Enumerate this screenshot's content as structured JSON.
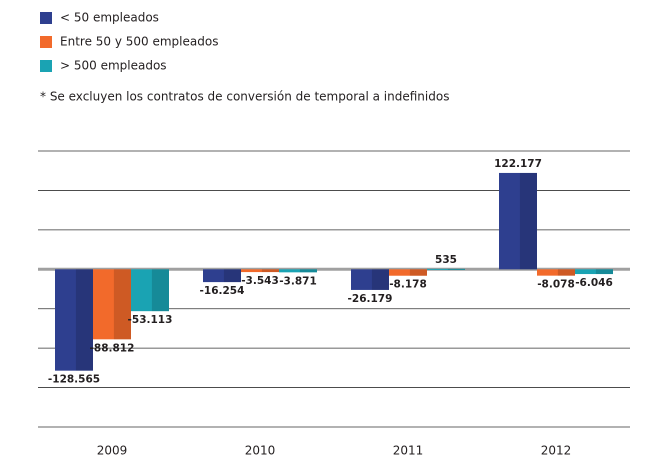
{
  "chart_data": {
    "type": "bar",
    "note": "* Se excluyen los contratos de conversión de temporal a indefinidos",
    "categories": [
      "2009",
      "2010",
      "2011",
      "2012"
    ],
    "series": [
      {
        "name": "< 50 empleados",
        "color": "#2e3f8f",
        "values": [
          -128565,
          -16254,
          -26179,
          122177
        ],
        "value_labels": [
          "-128.565",
          "-16.254",
          "-26.179",
          "122.177"
        ]
      },
      {
        "name": "Entre 50 y 500 empleados",
        "color": "#f26a2b",
        "values": [
          -88812,
          -3543,
          -8178,
          -8078
        ],
        "value_labels": [
          "-88.812",
          "-3.543",
          "-8.178",
          "-8.078"
        ]
      },
      {
        "name": "> 500 empleados",
        "color": "#1aa3b3",
        "values": [
          -53113,
          -3871,
          535,
          -6046
        ],
        "value_labels": [
          "-53.113",
          "-3.871",
          "535",
          "-6.046"
        ]
      }
    ],
    "ylim": [
      -200000,
      150000
    ],
    "yticks": [
      -200000,
      -150000,
      -100000,
      -50000,
      0,
      50000,
      100000,
      150000
    ],
    "grid": true
  }
}
